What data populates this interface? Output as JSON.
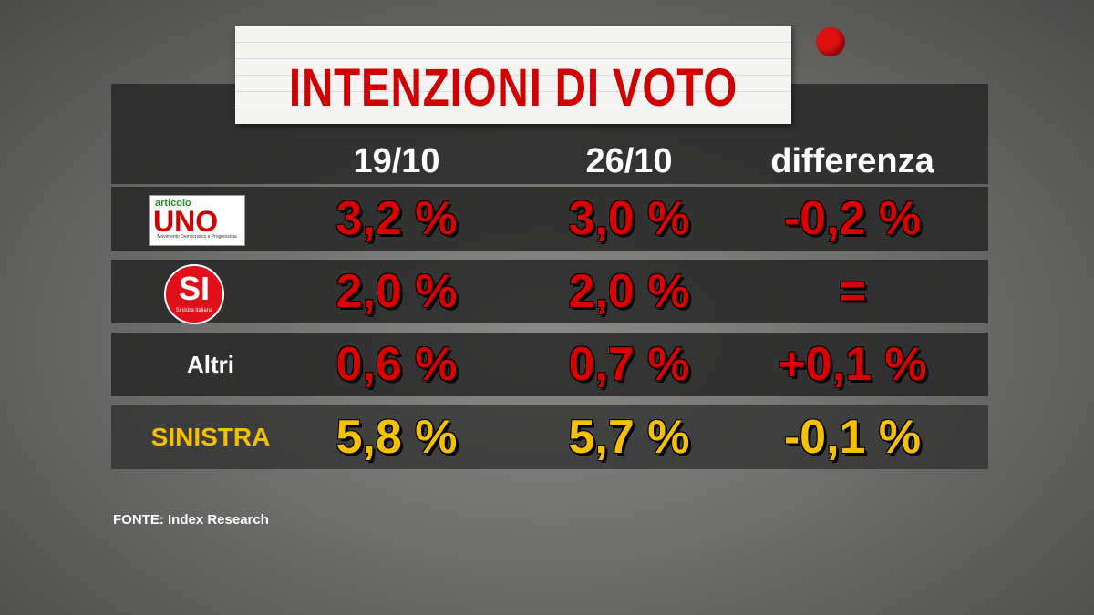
{
  "title": "INTENZIONI DI VOTO",
  "table": {
    "columns": [
      "19/10",
      "26/10",
      "differenza"
    ],
    "rows": [
      {
        "logo": {
          "top": "articolo",
          "main": "UNO",
          "sub": "Movimento Democratico e Progressista"
        },
        "values": [
          "3,2 %",
          "3,0 %",
          "-0,2 %"
        ]
      },
      {
        "logo": {
          "main": "SI",
          "sub": "Sinistra italiana"
        },
        "values": [
          "2,0 %",
          "2,0 %",
          "="
        ]
      },
      {
        "label": "Altri",
        "values": [
          "0,6 %",
          "0,7 %",
          "+0,1 %"
        ]
      },
      {
        "label": "SINISTRA",
        "values": [
          "5,8 %",
          "5,7 %",
          "-0,1 %"
        ]
      }
    ]
  },
  "source": "FONTE:  Index Research"
}
